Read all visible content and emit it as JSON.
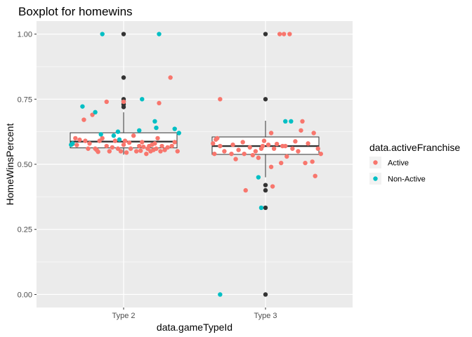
{
  "chart_data": {
    "type": "boxplot",
    "title": "Boxplot for homewins",
    "xlabel": "data.gameTypeId",
    "ylabel": "HomeWinsPercent",
    "ylim": [
      -0.05,
      1.05
    ],
    "yticks": [
      0.0,
      0.25,
      0.5,
      0.75,
      1.0
    ],
    "ytick_labels": [
      "0.00",
      "0.25",
      "0.50",
      "0.75",
      "1.00"
    ],
    "categories": [
      "Type 2",
      "Type 3"
    ],
    "grid": true,
    "legend": {
      "title": "data.activeFranchise",
      "placement": "right",
      "entries": [
        {
          "label": "Active",
          "color": "#F8766D"
        },
        {
          "label": "Non-Active",
          "color": "#00BFC4"
        }
      ]
    },
    "colors": {
      "panel": "#EBEBEB",
      "grid": "#FFFFFF",
      "outlier": "#333333",
      "box_fill": "#FFFFFF",
      "box_line": "#333333"
    },
    "boxes": [
      {
        "category": "Type 2",
        "lower_whisker": 0.537,
        "q1": 0.563,
        "median": 0.587,
        "q3": 0.621,
        "upper_whisker": 0.7,
        "outliers": [
          1.0,
          0.833,
          0.75,
          0.74,
          0.73,
          0.72
        ]
      },
      {
        "category": "Type 3",
        "lower_whisker": 0.45,
        "q1": 0.538,
        "median": 0.57,
        "q3": 0.605,
        "upper_whisker": 0.667,
        "outliers": [
          1.0,
          0.75,
          0.42,
          0.4,
          0.333,
          0.0
        ]
      }
    ],
    "series": [
      {
        "name": "Active",
        "color": "#F8766D",
        "points": [
          {
            "x": -0.36,
            "y": 0.578
          },
          {
            "x": -0.34,
            "y": 0.6
          },
          {
            "x": -0.33,
            "y": 0.574
          },
          {
            "x": -0.31,
            "y": 0.594
          },
          {
            "x": -0.28,
            "y": 0.671
          },
          {
            "x": -0.27,
            "y": 0.59
          },
          {
            "x": -0.25,
            "y": 0.56
          },
          {
            "x": -0.24,
            "y": 0.58
          },
          {
            "x": -0.22,
            "y": 0.69
          },
          {
            "x": -0.2,
            "y": 0.56
          },
          {
            "x": -0.19,
            "y": 0.555
          },
          {
            "x": -0.18,
            "y": 0.548
          },
          {
            "x": -0.17,
            "y": 0.59
          },
          {
            "x": -0.15,
            "y": 0.6
          },
          {
            "x": -0.12,
            "y": 0.57
          },
          {
            "x": -0.1,
            "y": 0.55
          },
          {
            "x": -0.08,
            "y": 0.565
          },
          {
            "x": -0.06,
            "y": 0.59
          },
          {
            "x": -0.04,
            "y": 0.56
          },
          {
            "x": -0.02,
            "y": 0.55
          },
          {
            "x": 0.0,
            "y": 0.575
          },
          {
            "x": 0.01,
            "y": 0.59
          },
          {
            "x": 0.02,
            "y": 0.545
          },
          {
            "x": 0.04,
            "y": 0.583
          },
          {
            "x": 0.05,
            "y": 0.56
          },
          {
            "x": 0.07,
            "y": 0.61
          },
          {
            "x": 0.09,
            "y": 0.55
          },
          {
            "x": 0.11,
            "y": 0.57
          },
          {
            "x": 0.12,
            "y": 0.552
          },
          {
            "x": 0.13,
            "y": 0.585
          },
          {
            "x": 0.14,
            "y": 0.567
          },
          {
            "x": 0.16,
            "y": 0.54
          },
          {
            "x": 0.17,
            "y": 0.56
          },
          {
            "x": 0.18,
            "y": 0.57
          },
          {
            "x": 0.19,
            "y": 0.55
          },
          {
            "x": 0.2,
            "y": 0.575
          },
          {
            "x": 0.21,
            "y": 0.555
          },
          {
            "x": 0.22,
            "y": 0.58
          },
          {
            "x": 0.23,
            "y": 0.56
          },
          {
            "x": 0.24,
            "y": 0.6
          },
          {
            "x": 0.25,
            "y": 0.735
          },
          {
            "x": 0.26,
            "y": 0.55
          },
          {
            "x": 0.27,
            "y": 0.57
          },
          {
            "x": 0.29,
            "y": 0.555
          },
          {
            "x": 0.31,
            "y": 0.565
          },
          {
            "x": 0.33,
            "y": 0.833
          },
          {
            "x": 0.34,
            "y": 0.57
          },
          {
            "x": 0.36,
            "y": 0.585
          },
          {
            "x": 0.38,
            "y": 0.55
          },
          {
            "x": -0.12,
            "y": 0.74
          },
          {
            "x": 0.0,
            "y": 0.74
          },
          {
            "x": 0.63,
            "y": 0.58
          },
          {
            "x": 0.64,
            "y": 0.54
          },
          {
            "x": 0.65,
            "y": 0.595
          },
          {
            "x": 0.66,
            "y": 0.6
          },
          {
            "x": 0.68,
            "y": 0.57
          },
          {
            "x": 0.68,
            "y": 0.75
          },
          {
            "x": 0.71,
            "y": 0.55
          },
          {
            "x": 0.76,
            "y": 0.54
          },
          {
            "x": 0.77,
            "y": 0.575
          },
          {
            "x": 0.79,
            "y": 0.52
          },
          {
            "x": 0.81,
            "y": 0.555
          },
          {
            "x": 0.84,
            "y": 0.585
          },
          {
            "x": 0.85,
            "y": 0.54
          },
          {
            "x": 0.86,
            "y": 0.4
          },
          {
            "x": 0.89,
            "y": 0.565
          },
          {
            "x": 0.91,
            "y": 0.535
          },
          {
            "x": 0.93,
            "y": 0.55
          },
          {
            "x": 0.95,
            "y": 0.525
          },
          {
            "x": 0.98,
            "y": 0.57
          },
          {
            "x": 0.99,
            "y": 0.59
          },
          {
            "x": 1.02,
            "y": 0.575
          },
          {
            "x": 1.04,
            "y": 0.49
          },
          {
            "x": 1.04,
            "y": 0.62
          },
          {
            "x": 1.05,
            "y": 0.415
          },
          {
            "x": 1.06,
            "y": 0.56
          },
          {
            "x": 1.08,
            "y": 0.578
          },
          {
            "x": 1.1,
            "y": 1.0
          },
          {
            "x": 1.11,
            "y": 0.505
          },
          {
            "x": 1.12,
            "y": 0.57
          },
          {
            "x": 1.13,
            "y": 1.0
          },
          {
            "x": 1.14,
            "y": 0.57
          },
          {
            "x": 1.15,
            "y": 0.53
          },
          {
            "x": 1.17,
            "y": 1.0
          },
          {
            "x": 1.19,
            "y": 0.56
          },
          {
            "x": 1.21,
            "y": 0.588
          },
          {
            "x": 1.23,
            "y": 0.55
          },
          {
            "x": 1.25,
            "y": 0.63
          },
          {
            "x": 1.26,
            "y": 0.665
          },
          {
            "x": 1.28,
            "y": 0.505
          },
          {
            "x": 1.3,
            "y": 0.58
          },
          {
            "x": 1.33,
            "y": 0.51
          },
          {
            "x": 1.34,
            "y": 0.62
          },
          {
            "x": 1.35,
            "y": 0.455
          },
          {
            "x": 1.37,
            "y": 0.56
          },
          {
            "x": 1.39,
            "y": 0.54
          },
          {
            "x": 0.97,
            "y": 0.56
          }
        ]
      },
      {
        "name": "Non-Active",
        "color": "#00BFC4",
        "points": [
          {
            "x": -0.37,
            "y": 0.575
          },
          {
            "x": -0.36,
            "y": 0.58
          },
          {
            "x": -0.29,
            "y": 0.722
          },
          {
            "x": -0.2,
            "y": 0.7
          },
          {
            "x": -0.16,
            "y": 0.615
          },
          {
            "x": -0.15,
            "y": 1.0
          },
          {
            "x": -0.07,
            "y": 0.61
          },
          {
            "x": -0.04,
            "y": 0.625
          },
          {
            "x": -0.03,
            "y": 0.595
          },
          {
            "x": 0.13,
            "y": 0.75
          },
          {
            "x": 0.22,
            "y": 0.665
          },
          {
            "x": 0.23,
            "y": 0.64
          },
          {
            "x": 0.25,
            "y": 1.0
          },
          {
            "x": 0.36,
            "y": 0.636
          },
          {
            "x": 0.39,
            "y": 0.62
          },
          {
            "x": 0.11,
            "y": 0.63
          },
          {
            "x": 0.68,
            "y": 0.0
          },
          {
            "x": 0.97,
            "y": 0.333
          },
          {
            "x": 0.95,
            "y": 0.45
          },
          {
            "x": 1.14,
            "y": 0.665
          },
          {
            "x": 1.18,
            "y": 0.665
          }
        ]
      }
    ]
  }
}
